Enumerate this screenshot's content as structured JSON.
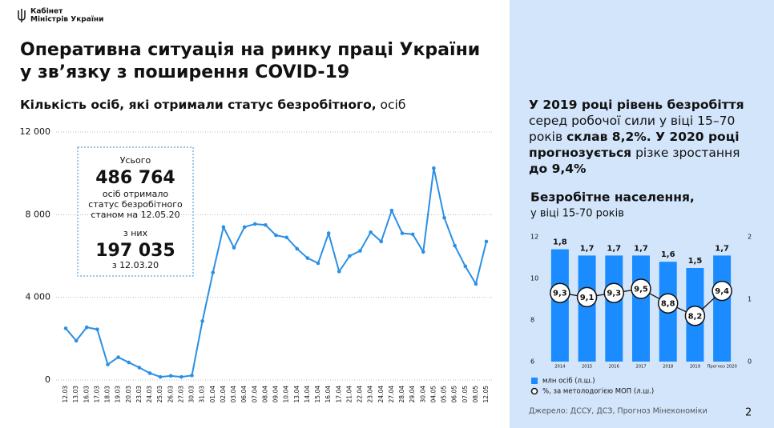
{
  "header": {
    "logo": [
      "Кабінет",
      "Міністрів України"
    ]
  },
  "title": [
    "Оперативна ситуація на ринку праці України",
    "у зв’язку з поширення COVID-19"
  ],
  "chart_data": [
    {
      "type": "line",
      "title": "Кількість осіб, які отримали статус безробітного,",
      "unit": "осіб",
      "color": "#2b8fe5",
      "grid": true,
      "categories": [
        "12.03",
        "13.03",
        "16.03",
        "17.03",
        "18.03",
        "19.03",
        "20.03",
        "23.03",
        "24.03",
        "25.03",
        "26.03",
        "27.03",
        "30.03",
        "31.03",
        "01.04",
        "02.04",
        "03.04",
        "06.04",
        "07.04",
        "08.04",
        "09.04",
        "10.04",
        "13.04",
        "14.04",
        "15.04",
        "16.04",
        "17.04",
        "21.04",
        "22.04",
        "23.04",
        "24.04",
        "27.04",
        "28.04",
        "29.04",
        "30.04",
        "04.05",
        "05.05",
        "06.05",
        "07.05",
        "08.05",
        "12.05"
      ],
      "values": [
        2500,
        1900,
        2550,
        2450,
        750,
        1100,
        850,
        600,
        330,
        150,
        200,
        150,
        220,
        2850,
        5200,
        7400,
        6400,
        7400,
        7550,
        7500,
        7000,
        6900,
        6350,
        5900,
        5650,
        7100,
        5250,
        6000,
        6250,
        7150,
        6700,
        8200,
        7100,
        7050,
        6200,
        10250,
        7850,
        6500,
        5500,
        4650,
        6700
      ],
      "ylim": [
        0,
        12000
      ],
      "yticks": [
        {
          "value": 0,
          "label": "0"
        },
        {
          "value": 4000,
          "label": "4 000"
        },
        {
          "value": 8000,
          "label": "8 000"
        },
        {
          "value": 12000,
          "label": "12 000"
        }
      ],
      "annotation": [
        {
          "text": "Усього",
          "bold": false
        },
        {
          "text": "486 764",
          "bold": true
        },
        {
          "text": "осіб отримало",
          "bold": false
        },
        {
          "text": "статус безробітного",
          "bold": false
        },
        {
          "text": "станом на 12.05.20",
          "bold": false
        },
        {
          "text": "з них",
          "bold": false
        },
        {
          "text": "197 035",
          "bold": true
        },
        {
          "text": "з 12.03.20",
          "bold": false
        }
      ]
    },
    {
      "type": "combo",
      "title": "Безробітне населення,",
      "subtitle": "у віці 15-70 років",
      "categories": [
        "2014",
        "2015",
        "2016",
        "2017",
        "2018",
        "2019",
        "Прогноз 2020"
      ],
      "series": [
        {
          "name": "млн осіб (л.ш.)",
          "kind": "bar",
          "axis": "y2",
          "color": "#1a8cff",
          "values": [
            1.8,
            1.7,
            1.7,
            1.7,
            1.6,
            1.5,
            1.7
          ],
          "value_labels": [
            "1,8",
            "1,7",
            "1,7",
            "1,7",
            "1,6",
            "1,5",
            "1,7"
          ]
        },
        {
          "name": "%, за метолодогією МОП (л.ш.)",
          "kind": "line",
          "color": "#111111",
          "values": [
            9.3,
            9.1,
            9.3,
            9.5,
            8.8,
            8.2,
            9.4
          ],
          "value_labels": [
            "9,3",
            "9,1",
            "9,3",
            "9,5",
            "8,8",
            "8,2",
            "9,4"
          ]
        }
      ],
      "ylim": [
        6,
        12
      ],
      "yticks": [
        6,
        8,
        10,
        12
      ],
      "y2lim": [
        0,
        2
      ],
      "y2ticks": [
        0,
        1,
        2
      ]
    }
  ],
  "highlight": [
    {
      "text": "У 2019 році рівень безробіття",
      "bold": true
    },
    {
      "text": "серед робочої сили у віці 15–70 років",
      "bold": false
    },
    {
      "text": "склав 8,2%. У 2020 році прогнозується",
      "bold": true
    },
    {
      "text": "різке зростання",
      "bold": false
    },
    {
      "text": "до 9,4%",
      "bold": true
    }
  ],
  "source": "Джерело: ДССУ, ДСЗ, Прогноз Мінекономіки",
  "page_number": "2"
}
